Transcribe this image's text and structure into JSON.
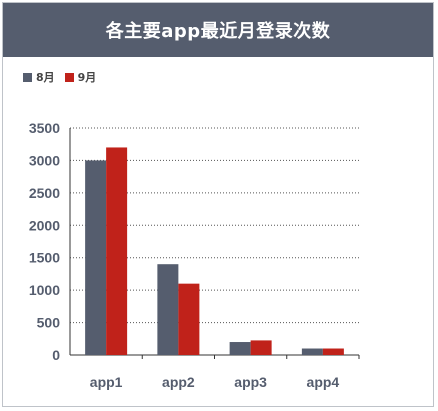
{
  "title": "各主要app最近月登录次数",
  "colors": {
    "title_bg": "#555d6e",
    "series_8": "#555d6e",
    "series_9": "#c0221a",
    "axis": "#333333",
    "grid": "#555555",
    "text": "#555d6e"
  },
  "chart_data": {
    "type": "bar",
    "title": "各主要app最近月登录次数",
    "categories": [
      "app1",
      "app2",
      "app3",
      "app4"
    ],
    "series": [
      {
        "name": "8月",
        "values": [
          3000,
          1400,
          200,
          100
        ]
      },
      {
        "name": "9月",
        "values": [
          3200,
          1100,
          225,
          100
        ]
      }
    ],
    "ylim": [
      0,
      3500
    ],
    "yticks": [
      0,
      500,
      1000,
      1500,
      2000,
      2500,
      3000,
      3500
    ],
    "grid": true,
    "legend": "top-left",
    "xlabel": "",
    "ylabel": ""
  }
}
